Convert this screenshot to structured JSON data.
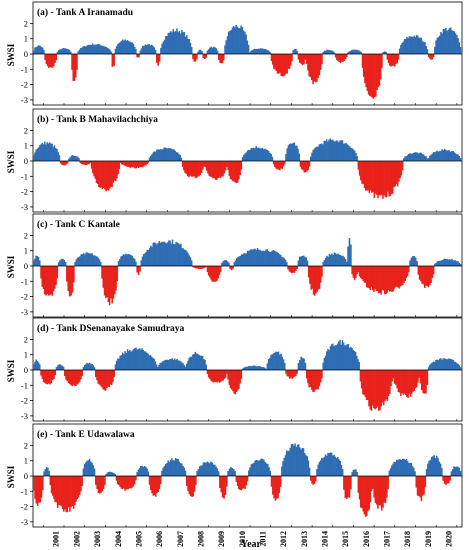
{
  "figure": {
    "xlabel": "Year",
    "years": [
      "2001",
      "2002",
      "2003",
      "2004",
      "2005",
      "2006",
      "2007",
      "2008",
      "2009",
      "2010",
      "2011",
      "2012",
      "2013",
      "2014",
      "2015",
      "2016",
      "2017",
      "2018",
      "2019",
      "2020"
    ]
  },
  "chart_data": [
    {
      "type": "bar",
      "title": "(a) - Tank A Iranamadu",
      "ylabel": "SWSI",
      "ylim": [
        -3,
        2
      ],
      "yticks": [
        "2",
        "1",
        "0",
        "-1",
        "-2",
        "-3"
      ],
      "x_range": [
        2000.0,
        2020.75
      ],
      "positive_color": "#2e6db4",
      "negative_color": "#e8221b",
      "segments": [
        {
          "start": 2000.0,
          "end": 2000.55,
          "peak": 0.6
        },
        {
          "start": 2000.55,
          "end": 2001.15,
          "peak": -1.0
        },
        {
          "start": 2001.15,
          "end": 2001.85,
          "peak": 0.4
        },
        {
          "start": 2001.85,
          "end": 2002.15,
          "peak": -2.0
        },
        {
          "start": 2002.15,
          "end": 2003.8,
          "peak": 0.7
        },
        {
          "start": 2003.8,
          "end": 2003.95,
          "peak": -1.0
        },
        {
          "start": 2003.95,
          "end": 2005.0,
          "peak": 1.0
        },
        {
          "start": 2005.0,
          "end": 2005.15,
          "peak": -0.3
        },
        {
          "start": 2005.15,
          "end": 2005.95,
          "peak": 0.7
        },
        {
          "start": 2005.95,
          "end": 2006.15,
          "peak": -0.8
        },
        {
          "start": 2006.15,
          "end": 2007.7,
          "peak": 1.7
        },
        {
          "start": 2007.7,
          "end": 2007.95,
          "peak": -0.6
        },
        {
          "start": 2007.95,
          "end": 2008.2,
          "peak": 0.3
        },
        {
          "start": 2008.2,
          "end": 2008.4,
          "peak": -0.4
        },
        {
          "start": 2008.4,
          "end": 2008.95,
          "peak": 0.5
        },
        {
          "start": 2008.95,
          "end": 2009.25,
          "peak": -0.7
        },
        {
          "start": 2009.25,
          "end": 2010.45,
          "peak": 2.0
        },
        {
          "start": 2010.45,
          "end": 2011.5,
          "peak": 0.4
        },
        {
          "start": 2011.5,
          "end": 2012.55,
          "peak": -1.5
        },
        {
          "start": 2012.55,
          "end": 2012.8,
          "peak": 0.4
        },
        {
          "start": 2012.8,
          "end": 2013.2,
          "peak": -0.8
        },
        {
          "start": 2013.2,
          "end": 2014.0,
          "peak": -2.0
        },
        {
          "start": 2014.0,
          "end": 2014.6,
          "peak": 0.3
        },
        {
          "start": 2014.6,
          "end": 2015.2,
          "peak": -0.6
        },
        {
          "start": 2015.2,
          "end": 2015.9,
          "peak": 0.3
        },
        {
          "start": 2015.9,
          "end": 2016.9,
          "peak": -3.0
        },
        {
          "start": 2016.9,
          "end": 2017.1,
          "peak": 0.2
        },
        {
          "start": 2017.1,
          "end": 2017.7,
          "peak": -0.9
        },
        {
          "start": 2017.7,
          "end": 2019.1,
          "peak": 1.3
        },
        {
          "start": 2019.1,
          "end": 2019.4,
          "peak": -0.4
        },
        {
          "start": 2019.4,
          "end": 2020.7,
          "peak": 1.8
        }
      ]
    },
    {
      "type": "bar",
      "title": "(b) - Tank B Mahavilachchiya",
      "ylabel": "SWSI",
      "ylim": [
        -3,
        2
      ],
      "yticks": [
        "2",
        "1",
        "0",
        "-1",
        "-2",
        "-3"
      ],
      "x_range": [
        2000.0,
        2020.75
      ],
      "positive_color": "#2e6db4",
      "negative_color": "#e8221b",
      "segments": [
        {
          "start": 2000.0,
          "end": 2001.3,
          "peak": 1.3
        },
        {
          "start": 2001.3,
          "end": 2001.7,
          "peak": -0.3
        },
        {
          "start": 2001.7,
          "end": 2002.25,
          "peak": 0.4
        },
        {
          "start": 2002.25,
          "end": 2002.8,
          "peak": -0.3
        },
        {
          "start": 2002.8,
          "end": 2004.2,
          "peak": -2.0
        },
        {
          "start": 2004.2,
          "end": 2005.6,
          "peak": -0.5
        },
        {
          "start": 2005.6,
          "end": 2007.2,
          "peak": 0.9
        },
        {
          "start": 2007.2,
          "end": 2008.3,
          "peak": -1.2
        },
        {
          "start": 2008.3,
          "end": 2009.4,
          "peak": -1.3
        },
        {
          "start": 2009.4,
          "end": 2010.1,
          "peak": -1.6
        },
        {
          "start": 2010.1,
          "end": 2011.6,
          "peak": 1.0
        },
        {
          "start": 2011.6,
          "end": 2012.2,
          "peak": -0.6
        },
        {
          "start": 2012.2,
          "end": 2012.9,
          "peak": 1.3
        },
        {
          "start": 2012.9,
          "end": 2013.4,
          "peak": -0.8
        },
        {
          "start": 2013.4,
          "end": 2015.7,
          "peak": 1.5
        },
        {
          "start": 2015.7,
          "end": 2017.9,
          "peak": -2.6
        },
        {
          "start": 2017.9,
          "end": 2019.1,
          "peak": 0.6
        },
        {
          "start": 2019.1,
          "end": 2020.7,
          "peak": 0.8
        }
      ]
    },
    {
      "type": "bar",
      "title": "(c) - Tank C Kantale",
      "ylabel": "SWSI",
      "ylim": [
        -3,
        2
      ],
      "yticks": [
        "2",
        "1",
        "0",
        "-1",
        "-2",
        "-3"
      ],
      "x_range": [
        2000.0,
        2020.75
      ],
      "positive_color": "#2e6db4",
      "negative_color": "#e8221b",
      "segments": [
        {
          "start": 2000.0,
          "end": 2000.35,
          "peak": 0.7
        },
        {
          "start": 2000.35,
          "end": 2001.2,
          "peak": -2.3
        },
        {
          "start": 2001.2,
          "end": 2001.6,
          "peak": 0.5
        },
        {
          "start": 2001.6,
          "end": 2002.0,
          "peak": -2.2
        },
        {
          "start": 2002.0,
          "end": 2003.3,
          "peak": 0.9
        },
        {
          "start": 2003.3,
          "end": 2004.1,
          "peak": -2.6
        },
        {
          "start": 2004.1,
          "end": 2005.0,
          "peak": 0.9
        },
        {
          "start": 2005.0,
          "end": 2005.2,
          "peak": -0.6
        },
        {
          "start": 2005.2,
          "end": 2007.7,
          "peak": 1.8
        },
        {
          "start": 2007.7,
          "end": 2008.4,
          "peak": -0.2
        },
        {
          "start": 2008.4,
          "end": 2009.1,
          "peak": -1.1
        },
        {
          "start": 2009.1,
          "end": 2009.5,
          "peak": 0.4
        },
        {
          "start": 2009.5,
          "end": 2009.7,
          "peak": -0.3
        },
        {
          "start": 2009.7,
          "end": 2012.3,
          "peak": 1.2
        },
        {
          "start": 2012.3,
          "end": 2012.8,
          "peak": -0.5
        },
        {
          "start": 2012.8,
          "end": 2013.3,
          "peak": 0.8
        },
        {
          "start": 2013.3,
          "end": 2014.0,
          "peak": -2.0
        },
        {
          "start": 2014.0,
          "end": 2015.2,
          "peak": 0.9
        },
        {
          "start": 2015.2,
          "end": 2015.4,
          "peak": 2.1
        },
        {
          "start": 2015.4,
          "end": 2015.7,
          "peak": -1.0
        },
        {
          "start": 2015.7,
          "end": 2018.2,
          "peak": -1.9
        },
        {
          "start": 2018.2,
          "end": 2018.6,
          "peak": 0.7
        },
        {
          "start": 2018.6,
          "end": 2019.4,
          "peak": -1.5
        },
        {
          "start": 2019.4,
          "end": 2020.7,
          "peak": 0.5
        }
      ]
    },
    {
      "type": "bar",
      "title": "(d) - Tank DSenanayake Samudraya",
      "ylabel": "SWSI",
      "ylim": [
        -3,
        2
      ],
      "yticks": [
        "2",
        "1",
        "0",
        "-1",
        "-2",
        "-3"
      ],
      "x_range": [
        2000.0,
        2020.75
      ],
      "positive_color": "#2e6db4",
      "negative_color": "#e8221b",
      "segments": [
        {
          "start": 2000.0,
          "end": 2000.35,
          "peak": 0.7
        },
        {
          "start": 2000.35,
          "end": 2001.1,
          "peak": -1.0
        },
        {
          "start": 2001.1,
          "end": 2001.5,
          "peak": 0.4
        },
        {
          "start": 2001.5,
          "end": 2002.4,
          "peak": -1.1
        },
        {
          "start": 2002.4,
          "end": 2003.0,
          "peak": 0.5
        },
        {
          "start": 2003.0,
          "end": 2003.95,
          "peak": -1.4
        },
        {
          "start": 2003.95,
          "end": 2006.0,
          "peak": 1.5
        },
        {
          "start": 2006.0,
          "end": 2007.4,
          "peak": 0.8
        },
        {
          "start": 2007.4,
          "end": 2008.4,
          "peak": 1.2
        },
        {
          "start": 2008.4,
          "end": 2009.4,
          "peak": -0.9
        },
        {
          "start": 2009.4,
          "end": 2010.1,
          "peak": -1.6
        },
        {
          "start": 2010.1,
          "end": 2011.3,
          "peak": 0.3
        },
        {
          "start": 2011.3,
          "end": 2012.2,
          "peak": 1.3
        },
        {
          "start": 2012.2,
          "end": 2012.8,
          "peak": -0.6
        },
        {
          "start": 2012.8,
          "end": 2013.2,
          "peak": 0.9
        },
        {
          "start": 2013.2,
          "end": 2014.0,
          "peak": -1.5
        },
        {
          "start": 2014.0,
          "end": 2015.8,
          "peak": 2.0
        },
        {
          "start": 2015.8,
          "end": 2017.4,
          "peak": -2.8
        },
        {
          "start": 2017.4,
          "end": 2018.7,
          "peak": -1.9
        },
        {
          "start": 2018.7,
          "end": 2019.1,
          "peak": -1.8
        },
        {
          "start": 2019.1,
          "end": 2020.7,
          "peak": 0.8
        }
      ]
    },
    {
      "type": "bar",
      "title": "(e) - Tank E Udawalawa",
      "ylabel": "SWSI",
      "ylim": [
        -3,
        2
      ],
      "yticks": [
        "2",
        "1",
        "0",
        "-1",
        "-2",
        "-3"
      ],
      "x_range": [
        2000.0,
        2020.75
      ],
      "positive_color": "#2e6db4",
      "negative_color": "#e8221b",
      "segments": [
        {
          "start": 2000.0,
          "end": 2000.5,
          "peak": -2.0
        },
        {
          "start": 2000.5,
          "end": 2000.8,
          "peak": 0.6
        },
        {
          "start": 2000.8,
          "end": 2002.4,
          "peak": -2.5
        },
        {
          "start": 2002.4,
          "end": 2003.0,
          "peak": 1.2
        },
        {
          "start": 2003.0,
          "end": 2003.5,
          "peak": -1.3
        },
        {
          "start": 2003.5,
          "end": 2004.0,
          "peak": 0.3
        },
        {
          "start": 2004.0,
          "end": 2005.0,
          "peak": -1.0
        },
        {
          "start": 2005.0,
          "end": 2005.6,
          "peak": 0.7
        },
        {
          "start": 2005.6,
          "end": 2006.2,
          "peak": -1.4
        },
        {
          "start": 2006.2,
          "end": 2007.4,
          "peak": 1.2
        },
        {
          "start": 2007.4,
          "end": 2007.9,
          "peak": -1.5
        },
        {
          "start": 2007.9,
          "end": 2009.0,
          "peak": 1.0
        },
        {
          "start": 2009.0,
          "end": 2009.4,
          "peak": -1.5
        },
        {
          "start": 2009.4,
          "end": 2009.8,
          "peak": 0.6
        },
        {
          "start": 2009.8,
          "end": 2010.4,
          "peak": -1.0
        },
        {
          "start": 2010.4,
          "end": 2011.5,
          "peak": 1.2
        },
        {
          "start": 2011.5,
          "end": 2012.0,
          "peak": -1.7
        },
        {
          "start": 2012.0,
          "end": 2013.4,
          "peak": 2.2
        },
        {
          "start": 2013.4,
          "end": 2013.7,
          "peak": -0.6
        },
        {
          "start": 2013.7,
          "end": 2015.0,
          "peak": 1.6
        },
        {
          "start": 2015.0,
          "end": 2015.4,
          "peak": -1.7
        },
        {
          "start": 2015.4,
          "end": 2015.7,
          "peak": 0.5
        },
        {
          "start": 2015.7,
          "end": 2016.4,
          "peak": -2.8
        },
        {
          "start": 2016.4,
          "end": 2017.2,
          "peak": -2.3
        },
        {
          "start": 2017.2,
          "end": 2018.5,
          "peak": 1.2
        },
        {
          "start": 2018.5,
          "end": 2019.0,
          "peak": -1.7
        },
        {
          "start": 2019.0,
          "end": 2019.8,
          "peak": 1.4
        },
        {
          "start": 2019.8,
          "end": 2020.2,
          "peak": -0.6
        },
        {
          "start": 2020.2,
          "end": 2020.7,
          "peak": 0.7
        }
      ]
    }
  ]
}
